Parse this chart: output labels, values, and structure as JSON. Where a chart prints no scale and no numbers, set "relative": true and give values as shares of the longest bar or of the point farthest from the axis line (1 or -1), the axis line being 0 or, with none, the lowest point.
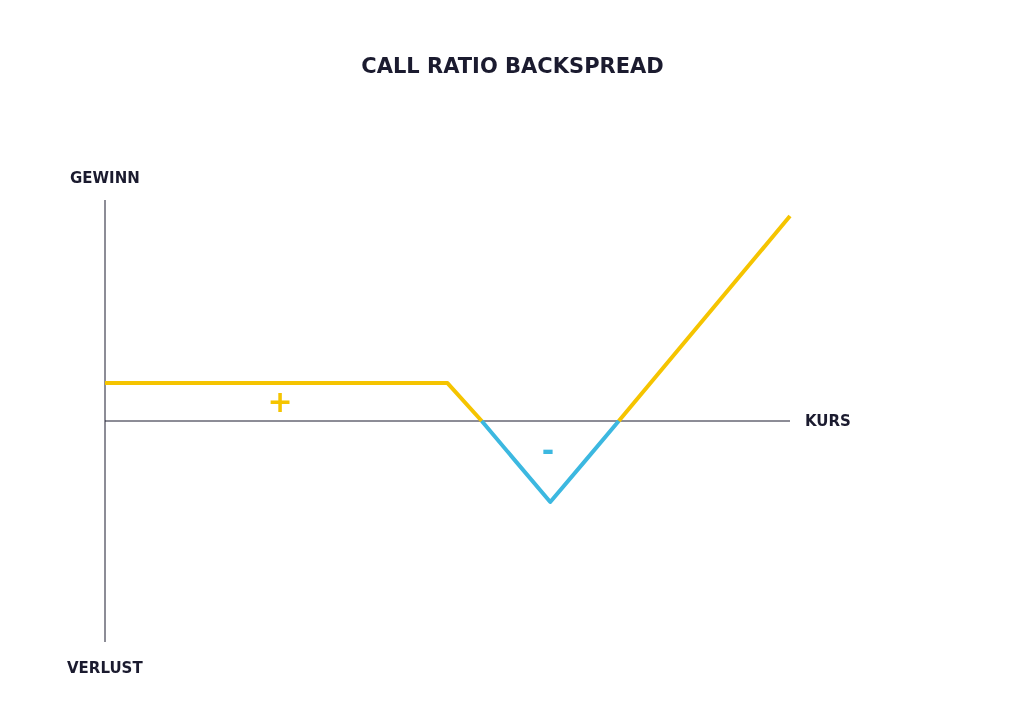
{
  "chart_data": {
    "type": "line",
    "title": "CALL RATIO BACKSPREAD",
    "xlabel": "KURS",
    "ylabel": "GEWINN",
    "relative": true,
    "annotations": [
      "VERLUST",
      "+",
      "-"
    ],
    "categories": [
      null,
      null,
      null,
      null,
      null,
      null,
      null,
      null,
      null,
      null,
      null,
      null,
      null,
      null,
      null,
      null,
      null,
      null,
      null,
      null,
      null
    ],
    "series": [
      {
        "color": "#f5c400",
        "values": [
          0.185,
          0.185,
          0.185,
          0.185,
          0.185,
          0.185,
          0.185,
          0.185,
          0.185,
          0.185,
          0.185,
          0,
          null,
          null,
          null,
          0,
          0.2,
          0.4,
          0.6,
          0.8,
          1
        ]
      },
      {
        "color": "#3cb8e0",
        "values": [
          null,
          null,
          null,
          null,
          null,
          null,
          null,
          null,
          null,
          null,
          null,
          0,
          -0.198,
          -0.395,
          -0.198,
          0,
          null,
          null,
          null,
          null,
          null
        ]
      }
    ]
  }
}
